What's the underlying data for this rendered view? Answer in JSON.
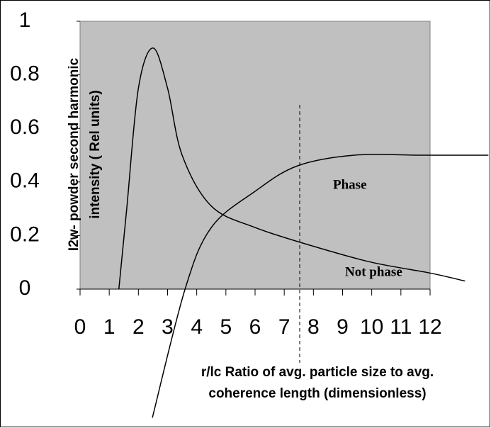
{
  "chart_data": {
    "type": "line",
    "xlim": [
      0,
      12
    ],
    "ylim": [
      0,
      1
    ],
    "xticks": [
      0,
      1,
      2,
      3,
      4,
      5,
      6,
      7,
      8,
      9,
      10,
      11,
      12
    ],
    "yticks": [
      0,
      0.2,
      0.4,
      0.6,
      0.8,
      1
    ],
    "grid": false,
    "xlabel": [
      "r/lc Ratio of avg. particle size to avg.",
      "coherence length (dimensionless)"
    ],
    "ylabel": [
      "I2w- powder second harmonic",
      "intensity ( Rel units)"
    ],
    "annotations": [
      "Phase",
      "Not phase"
    ],
    "series": [
      {
        "color": "#000000",
        "x": [
          1.33,
          1.6,
          2.0,
          2.5,
          3.0,
          3.5,
          4.5,
          6,
          8,
          10,
          12,
          13.2
        ],
        "values": [
          0,
          0.3,
          0.75,
          0.9,
          0.75,
          0.5,
          0.31,
          0.23,
          0.16,
          0.1,
          0.06,
          0.03
        ]
      },
      {
        "color": "#000000",
        "x": [
          2.48,
          3.6,
          4.5,
          6,
          7.45,
          9.4,
          11.8,
          14
        ],
        "values": [
          -0.48,
          0,
          0.23,
          0.365,
          0.46,
          0.5,
          0.5,
          0.5
        ]
      }
    ]
  }
}
